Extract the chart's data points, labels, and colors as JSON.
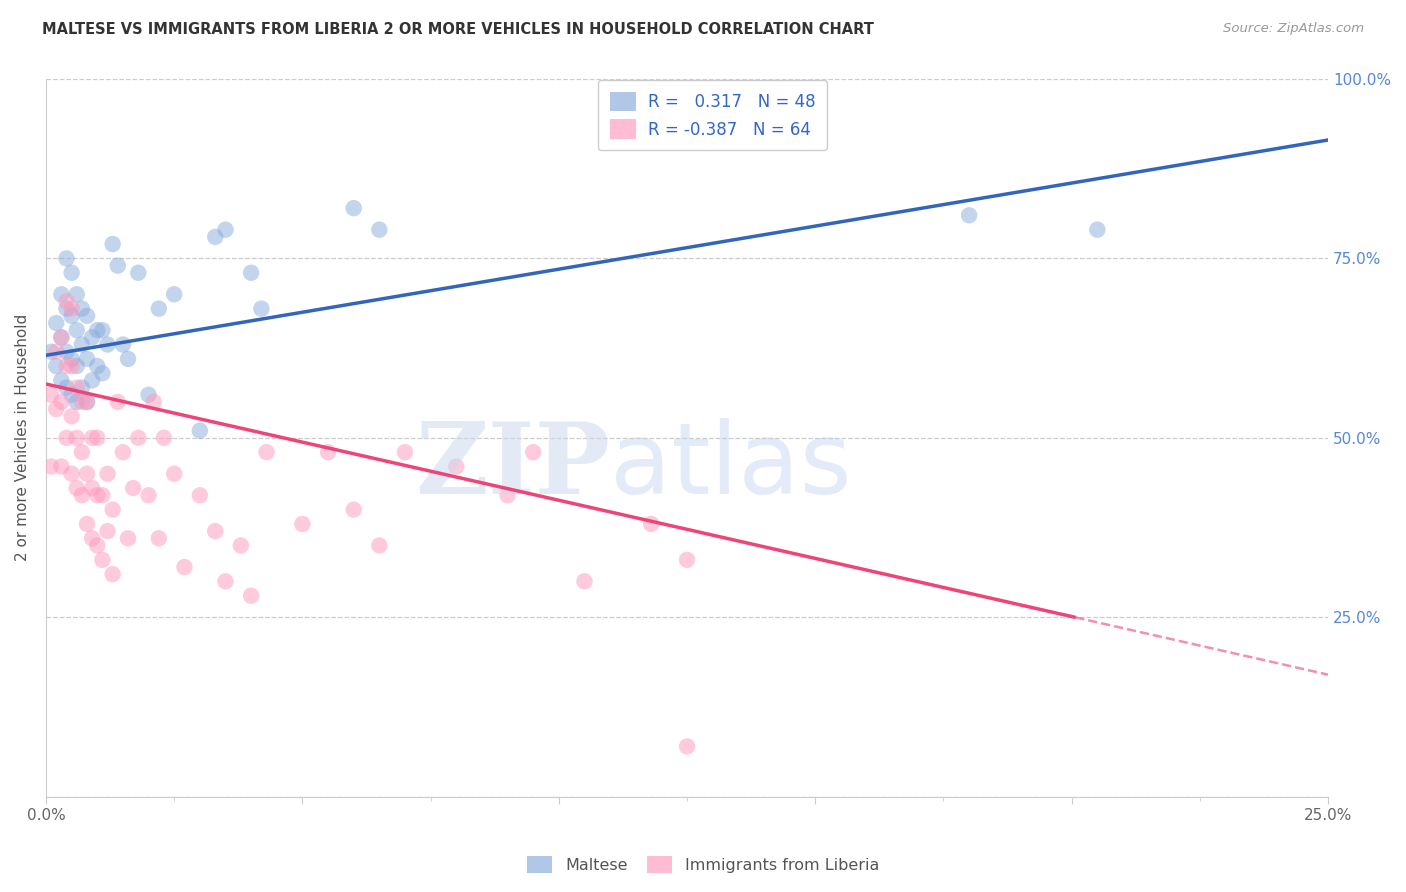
{
  "title": "MALTESE VS IMMIGRANTS FROM LIBERIA 2 OR MORE VEHICLES IN HOUSEHOLD CORRELATION CHART",
  "source": "Source: ZipAtlas.com",
  "ylabel": "2 or more Vehicles in Household",
  "xmin": 0.0,
  "xmax": 0.25,
  "ymin": 0.0,
  "ymax": 1.0,
  "blue_color": "#88aadd",
  "pink_color": "#ff99bb",
  "blue_line_color": "#3366bb",
  "pink_line_color": "#ee4477",
  "blue_line_y0": 0.615,
  "blue_line_y1": 0.915,
  "pink_line_y0": 0.575,
  "pink_line_y1": 0.17,
  "pink_dashed_threshold": 0.25,
  "legend_r_blue": "0.317",
  "legend_n_blue": "48",
  "legend_r_pink": "-0.387",
  "legend_n_pink": "64",
  "legend_label_blue": "Maltese",
  "legend_label_pink": "Immigrants from Liberia",
  "blue_points_x": [
    0.001,
    0.002,
    0.002,
    0.003,
    0.003,
    0.003,
    0.004,
    0.004,
    0.004,
    0.004,
    0.005,
    0.005,
    0.005,
    0.005,
    0.006,
    0.006,
    0.006,
    0.006,
    0.007,
    0.007,
    0.007,
    0.008,
    0.008,
    0.008,
    0.009,
    0.009,
    0.01,
    0.01,
    0.011,
    0.011,
    0.012,
    0.013,
    0.014,
    0.015,
    0.016,
    0.018,
    0.02,
    0.022,
    0.025,
    0.03,
    0.033,
    0.035,
    0.04,
    0.042,
    0.06,
    0.065,
    0.18,
    0.205
  ],
  "blue_points_y": [
    0.62,
    0.6,
    0.66,
    0.58,
    0.64,
    0.7,
    0.57,
    0.62,
    0.68,
    0.75,
    0.56,
    0.61,
    0.67,
    0.73,
    0.55,
    0.6,
    0.65,
    0.7,
    0.57,
    0.63,
    0.68,
    0.55,
    0.61,
    0.67,
    0.58,
    0.64,
    0.6,
    0.65,
    0.59,
    0.65,
    0.63,
    0.77,
    0.74,
    0.63,
    0.61,
    0.73,
    0.56,
    0.68,
    0.7,
    0.51,
    0.78,
    0.79,
    0.73,
    0.68,
    0.82,
    0.79,
    0.81,
    0.79
  ],
  "pink_points_x": [
    0.001,
    0.001,
    0.002,
    0.002,
    0.003,
    0.003,
    0.003,
    0.004,
    0.004,
    0.004,
    0.005,
    0.005,
    0.005,
    0.005,
    0.006,
    0.006,
    0.006,
    0.007,
    0.007,
    0.007,
    0.008,
    0.008,
    0.008,
    0.009,
    0.009,
    0.009,
    0.01,
    0.01,
    0.01,
    0.011,
    0.011,
    0.012,
    0.012,
    0.013,
    0.013,
    0.014,
    0.015,
    0.016,
    0.017,
    0.018,
    0.02,
    0.021,
    0.022,
    0.023,
    0.025,
    0.027,
    0.03,
    0.033,
    0.035,
    0.038,
    0.04,
    0.043,
    0.05,
    0.055,
    0.06,
    0.065,
    0.07,
    0.08,
    0.09,
    0.095,
    0.105,
    0.118,
    0.125,
    0.125
  ],
  "pink_points_y": [
    0.56,
    0.46,
    0.62,
    0.54,
    0.55,
    0.64,
    0.46,
    0.5,
    0.6,
    0.69,
    0.45,
    0.53,
    0.6,
    0.68,
    0.43,
    0.5,
    0.57,
    0.42,
    0.48,
    0.55,
    0.38,
    0.45,
    0.55,
    0.36,
    0.43,
    0.5,
    0.35,
    0.42,
    0.5,
    0.33,
    0.42,
    0.37,
    0.45,
    0.31,
    0.4,
    0.55,
    0.48,
    0.36,
    0.43,
    0.5,
    0.42,
    0.55,
    0.36,
    0.5,
    0.45,
    0.32,
    0.42,
    0.37,
    0.3,
    0.35,
    0.28,
    0.48,
    0.38,
    0.48,
    0.4,
    0.35,
    0.48,
    0.46,
    0.42,
    0.48,
    0.3,
    0.38,
    0.33,
    0.07
  ]
}
